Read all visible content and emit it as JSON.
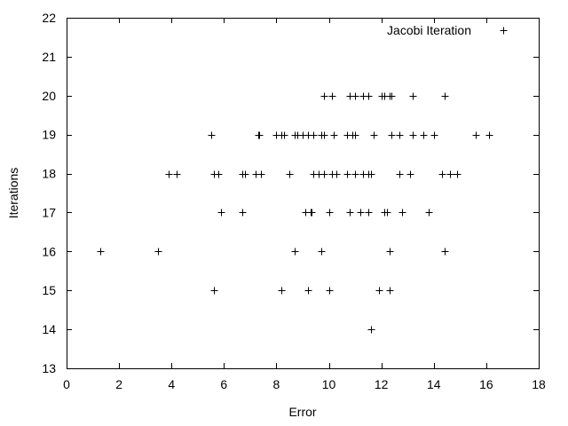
{
  "chart_data": {
    "type": "scatter",
    "title": "",
    "xlabel": "Error",
    "ylabel": "Iterations",
    "xlim": [
      0,
      18
    ],
    "ylim": [
      13,
      22
    ],
    "xticks": [
      0,
      2,
      4,
      6,
      8,
      10,
      12,
      14,
      16,
      18
    ],
    "yticks": [
      13,
      14,
      15,
      16,
      17,
      18,
      19,
      20,
      21,
      22
    ],
    "grid": false,
    "legend_position": "top-right",
    "marker": "plus",
    "series": [
      {
        "name": "Jacobi Iteration",
        "points": [
          [
            11.6,
            14
          ],
          [
            5.6,
            15
          ],
          [
            8.2,
            15
          ],
          [
            9.2,
            15
          ],
          [
            10.0,
            15
          ],
          [
            11.9,
            15
          ],
          [
            12.3,
            15
          ],
          [
            1.3,
            16
          ],
          [
            3.5,
            16
          ],
          [
            8.7,
            16
          ],
          [
            9.7,
            16
          ],
          [
            12.3,
            16
          ],
          [
            14.4,
            16
          ],
          [
            5.9,
            17
          ],
          [
            6.7,
            17
          ],
          [
            9.1,
            17
          ],
          [
            9.3,
            17
          ],
          [
            9.35,
            17
          ],
          [
            10.0,
            17
          ],
          [
            10.8,
            17
          ],
          [
            11.2,
            17
          ],
          [
            11.5,
            17
          ],
          [
            12.1,
            17
          ],
          [
            12.2,
            17
          ],
          [
            12.8,
            17
          ],
          [
            13.8,
            17
          ],
          [
            3.9,
            18
          ],
          [
            4.2,
            18
          ],
          [
            5.6,
            18
          ],
          [
            5.8,
            18
          ],
          [
            6.7,
            18
          ],
          [
            6.8,
            18
          ],
          [
            7.2,
            18
          ],
          [
            7.4,
            18
          ],
          [
            8.5,
            18
          ],
          [
            9.4,
            18
          ],
          [
            9.6,
            18
          ],
          [
            9.8,
            18
          ],
          [
            10.1,
            18
          ],
          [
            10.3,
            18
          ],
          [
            10.7,
            18
          ],
          [
            11.0,
            18
          ],
          [
            11.3,
            18
          ],
          [
            11.5,
            18
          ],
          [
            11.6,
            18
          ],
          [
            12.7,
            18
          ],
          [
            13.1,
            18
          ],
          [
            14.3,
            18
          ],
          [
            14.6,
            18
          ],
          [
            14.9,
            18
          ],
          [
            5.5,
            19
          ],
          [
            7.3,
            19
          ],
          [
            7.35,
            19
          ],
          [
            8.0,
            19
          ],
          [
            8.2,
            19
          ],
          [
            8.3,
            19
          ],
          [
            8.7,
            19
          ],
          [
            8.8,
            19
          ],
          [
            9.0,
            19
          ],
          [
            9.2,
            19
          ],
          [
            9.4,
            19
          ],
          [
            9.7,
            19
          ],
          [
            9.8,
            19
          ],
          [
            10.2,
            19
          ],
          [
            10.7,
            19
          ],
          [
            10.9,
            19
          ],
          [
            11.0,
            19
          ],
          [
            11.7,
            19
          ],
          [
            12.4,
            19
          ],
          [
            12.7,
            19
          ],
          [
            13.2,
            19
          ],
          [
            13.6,
            19
          ],
          [
            14.0,
            19
          ],
          [
            15.6,
            19
          ],
          [
            16.1,
            19
          ],
          [
            9.8,
            20
          ],
          [
            10.1,
            20
          ],
          [
            10.8,
            20
          ],
          [
            11.0,
            20
          ],
          [
            11.3,
            20
          ],
          [
            11.5,
            20
          ],
          [
            12.0,
            20
          ],
          [
            12.1,
            20
          ],
          [
            12.3,
            20
          ],
          [
            12.4,
            20
          ],
          [
            13.2,
            20
          ],
          [
            14.4,
            20
          ]
        ]
      }
    ]
  }
}
